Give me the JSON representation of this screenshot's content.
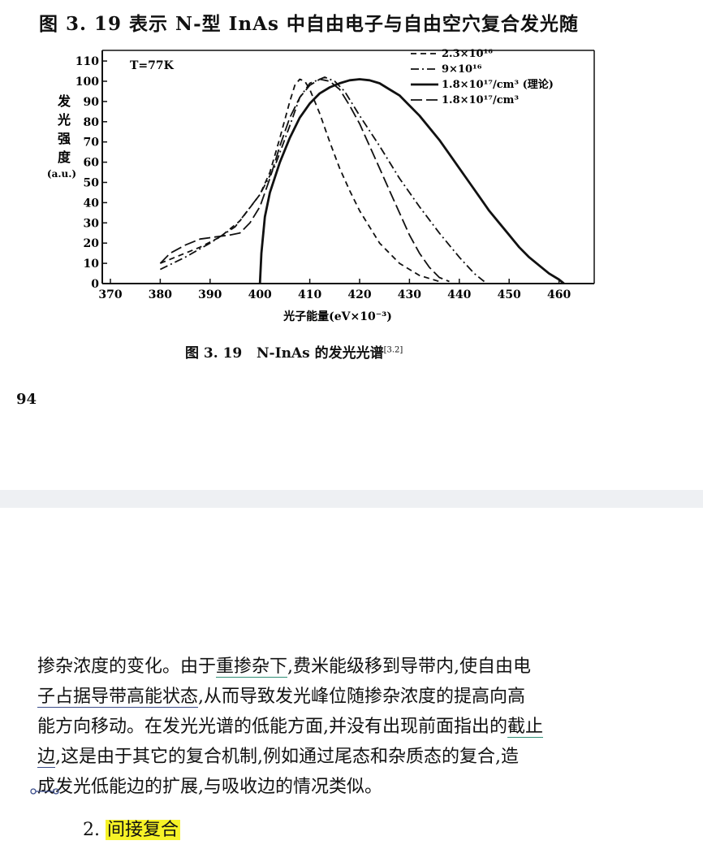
{
  "page_top": {
    "continuation_line": "图 3. 19 表示 N-型 InAs 中自由电子与自由空穴复合发光随",
    "caption_prefix": "图 3. 19",
    "caption_title": "N-InAs 的发光光谱",
    "caption_ref": "[3.2]",
    "page_number": "94"
  },
  "chart_data": {
    "type": "line",
    "title": "",
    "annotation": "T=77K",
    "xlabel": "光子能量(eV×10⁻³)",
    "ylabel": [
      "发",
      "光",
      "强",
      "度",
      "(a.u.)"
    ],
    "xlim": [
      370,
      470
    ],
    "ylim": [
      0,
      110
    ],
    "x_ticks": [
      "370",
      "380",
      "390",
      "400",
      "410",
      "420",
      "430",
      "440",
      "450",
      "460"
    ],
    "y_ticks": [
      "0",
      "10",
      "20",
      "30",
      "40",
      "50",
      "60",
      "70",
      "80",
      "90",
      "100",
      "110"
    ],
    "legend_position": "top-right",
    "series": [
      {
        "name": "2.3×10¹⁶",
        "style": "dashed",
        "points": [
          [
            380,
            10
          ],
          [
            384,
            14
          ],
          [
            388,
            18
          ],
          [
            392,
            23
          ],
          [
            396,
            31
          ],
          [
            400,
            44
          ],
          [
            402,
            55
          ],
          [
            404,
            72
          ],
          [
            406,
            90
          ],
          [
            407,
            98
          ],
          [
            408,
            101
          ],
          [
            409,
            100
          ],
          [
            410,
            96
          ],
          [
            412,
            84
          ],
          [
            414,
            70
          ],
          [
            416,
            57
          ],
          [
            418,
            46
          ],
          [
            420,
            36
          ],
          [
            424,
            20
          ],
          [
            428,
            10
          ],
          [
            432,
            4
          ],
          [
            436,
            1
          ]
        ]
      },
      {
        "name": "9×10¹⁶",
        "style": "dash-dot",
        "points": [
          [
            380,
            7
          ],
          [
            385,
            13
          ],
          [
            390,
            20
          ],
          [
            395,
            28
          ],
          [
            400,
            44
          ],
          [
            403,
            58
          ],
          [
            406,
            78
          ],
          [
            408,
            92
          ],
          [
            410,
            99
          ],
          [
            413,
            102
          ],
          [
            415,
            100
          ],
          [
            417,
            95
          ],
          [
            420,
            83
          ],
          [
            424,
            68
          ],
          [
            428,
            52
          ],
          [
            432,
            38
          ],
          [
            436,
            25
          ],
          [
            440,
            13
          ],
          [
            443,
            5
          ],
          [
            445,
            1
          ]
        ]
      },
      {
        "name": "1.8×10¹⁷/cm³ (理论)",
        "style": "solid",
        "points": [
          [
            400,
            0
          ],
          [
            400.3,
            15
          ],
          [
            401,
            33
          ],
          [
            402,
            45
          ],
          [
            404,
            60
          ],
          [
            406,
            72
          ],
          [
            408,
            82
          ],
          [
            410,
            89
          ],
          [
            412,
            94
          ],
          [
            414,
            97
          ],
          [
            416,
            99
          ],
          [
            418,
            100.5
          ],
          [
            420,
            101
          ],
          [
            422,
            100.5
          ],
          [
            424,
            99
          ],
          [
            426,
            96
          ],
          [
            428,
            93
          ],
          [
            430,
            88
          ],
          [
            432,
            83
          ],
          [
            434,
            77
          ],
          [
            436,
            71
          ],
          [
            438,
            64
          ],
          [
            440,
            57
          ],
          [
            442,
            50
          ],
          [
            444,
            43
          ],
          [
            446,
            36
          ],
          [
            448,
            30
          ],
          [
            450,
            24
          ],
          [
            452,
            18
          ],
          [
            454,
            13
          ],
          [
            456,
            9
          ],
          [
            458,
            5
          ],
          [
            460,
            2
          ],
          [
            461,
            0
          ]
        ]
      },
      {
        "name": "1.8×10¹⁷/cm³",
        "style": "long-dash",
        "points": [
          [
            380,
            10
          ],
          [
            382,
            15
          ],
          [
            385,
            19
          ],
          [
            388,
            22
          ],
          [
            391,
            23
          ],
          [
            394,
            24
          ],
          [
            396,
            25
          ],
          [
            398,
            30
          ],
          [
            400,
            38
          ],
          [
            402,
            52
          ],
          [
            404,
            68
          ],
          [
            406,
            82
          ],
          [
            408,
            92
          ],
          [
            410,
            98
          ],
          [
            412,
            101
          ],
          [
            414,
            100
          ],
          [
            416,
            96
          ],
          [
            418,
            88
          ],
          [
            420,
            79
          ],
          [
            422,
            68
          ],
          [
            424,
            57
          ],
          [
            426,
            46
          ],
          [
            428,
            35
          ],
          [
            430,
            24
          ],
          [
            432,
            15
          ],
          [
            434,
            8
          ],
          [
            436,
            3
          ],
          [
            438,
            1
          ]
        ]
      }
    ]
  },
  "page_bottom": {
    "paragraph_lines": [
      "掺杂浓度的变化。由于重掺杂下,费米能级移到导带内,使自由电",
      "子占据导带高能状态,从而导致发光峰位随掺杂浓度的提高向高",
      "能方向移动。在发光光谱的低能方面,并没有出现前面指出的截止",
      "边,这是由于其它的复合机制,例如通过尾态和杂质态的复合,造",
      "成发光低能边的扩展,与吸收边的情况类似。"
    ],
    "line1": {
      "before": "掺杂浓度的变化。由于",
      "underlined": "重掺杂下",
      "after": ",费米能级移到导带内,使自由电"
    },
    "line2": {
      "underlined": "子占据导带高能状态",
      "after": ",从而导致发光峰位随掺杂浓度的提高向高"
    },
    "line3": {
      "before": "能方向移动。在发光光谱的低能方面,并没有出现前面指出的",
      "underlined": "截止"
    },
    "line4": {
      "underlined": "边",
      "after": ",这是由于其它的复合机制,例如通过尾态和杂质态的复合,造"
    },
    "line5": "成发光低能边的扩展,与吸收边的情况类似。",
    "section_number": "2.",
    "section_title": "间接复合"
  },
  "colors": {
    "background": "#ffffff",
    "page_gap": "#eef0f3",
    "highlight": "#f6f227",
    "underline_blue": "#3a4c8a",
    "underline_teal": "#2f8f77"
  }
}
